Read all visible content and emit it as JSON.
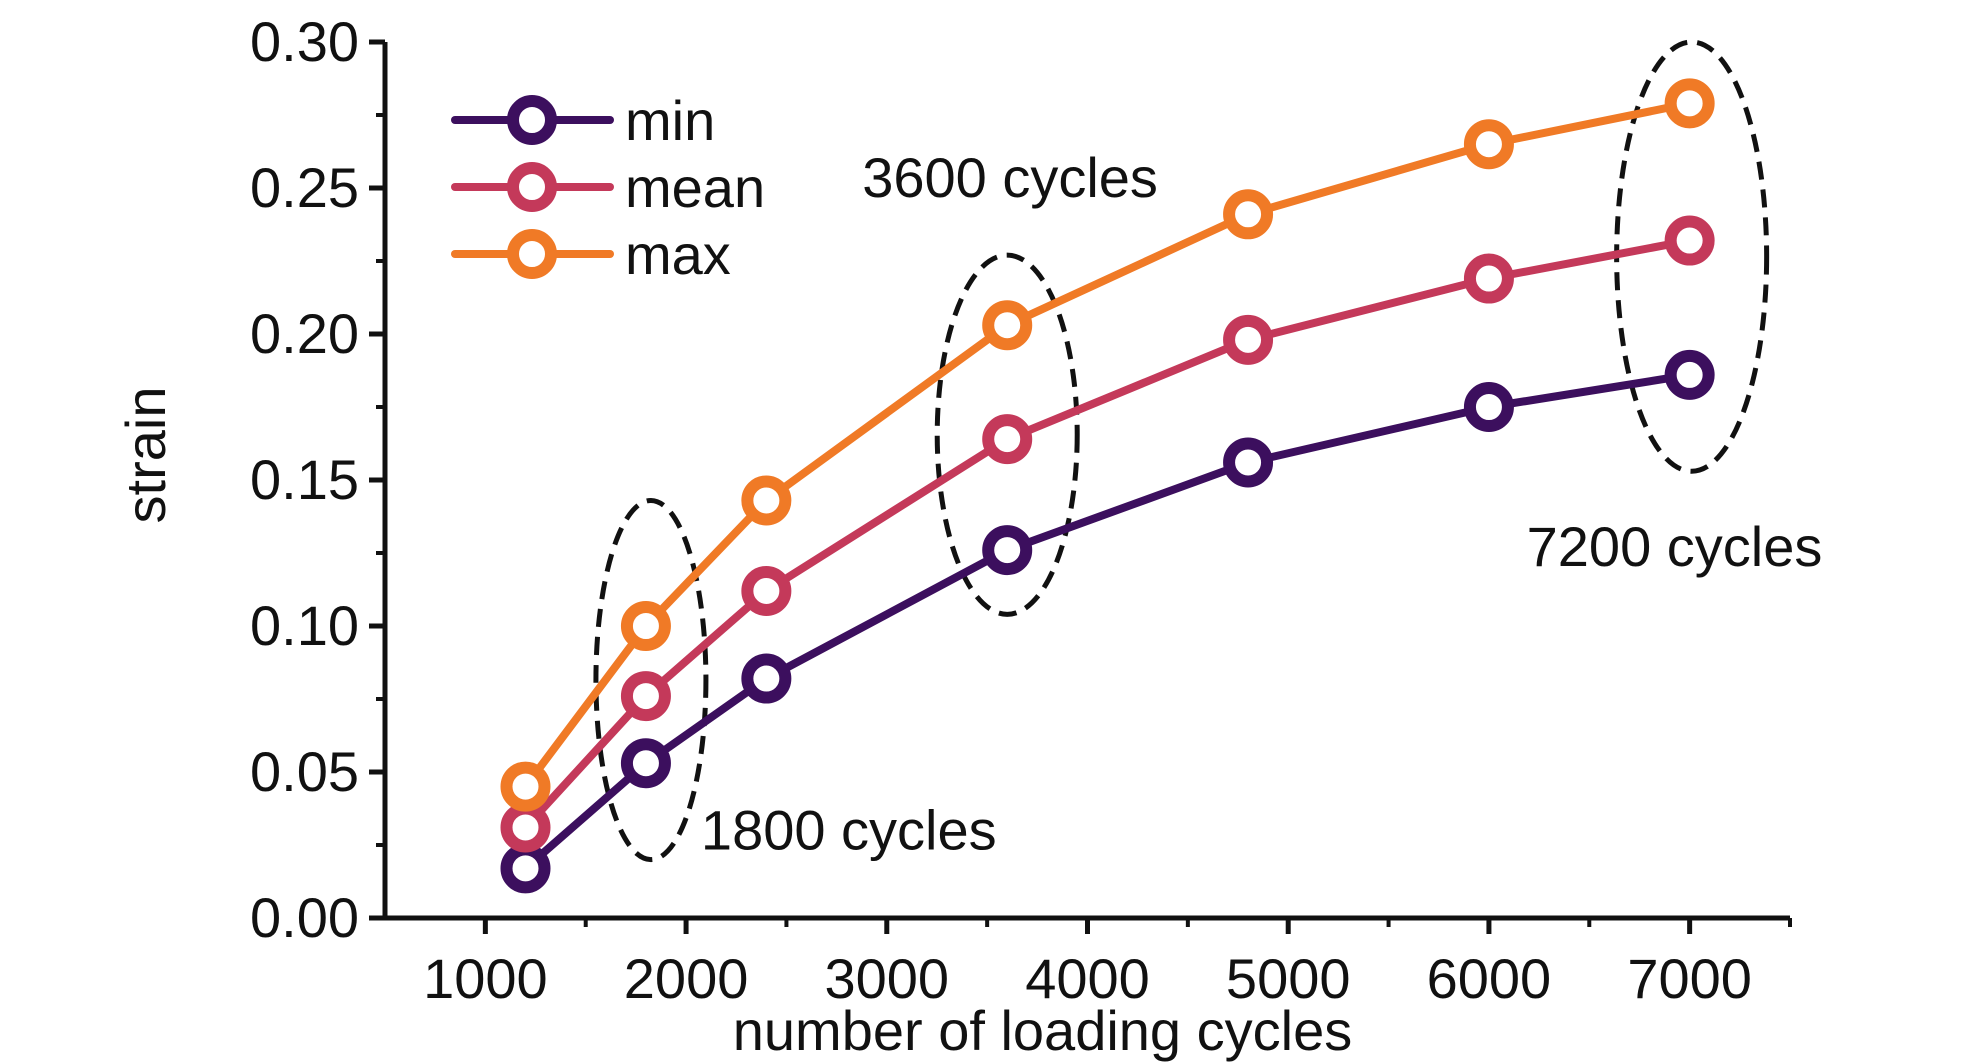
{
  "chart_data": {
    "type": "line",
    "xlabel": "number of loading cycles",
    "ylabel": "strain",
    "xlim": [
      500,
      7500
    ],
    "ylim": [
      0,
      0.3
    ],
    "x_ticks": [
      1000,
      2000,
      3000,
      4000,
      5000,
      6000,
      7000
    ],
    "x_tick_labels": [
      "1000",
      "2000",
      "3000",
      "4000",
      "5000",
      "6000",
      "7000"
    ],
    "y_ticks": [
      0,
      0.05,
      0.1,
      0.15,
      0.2,
      0.25,
      0.3
    ],
    "y_tick_labels": [
      "0.00",
      "0.05",
      "0.10",
      "0.15",
      "0.20",
      "0.25",
      "0.30"
    ],
    "grid": false,
    "legend_position": "top-left",
    "x": [
      1200,
      1800,
      2400,
      3600,
      4800,
      6000,
      7000
    ],
    "series": [
      {
        "name": "min",
        "color": "#3c0f5e",
        "values": [
          0.017,
          0.053,
          0.082,
          0.126,
          0.156,
          0.175,
          0.186
        ]
      },
      {
        "name": "mean",
        "color": "#c4395a",
        "values": [
          0.031,
          0.076,
          0.112,
          0.164,
          0.198,
          0.219,
          0.232
        ]
      },
      {
        "name": "max",
        "color": "#f07a26",
        "values": [
          0.045,
          0.1,
          0.143,
          0.203,
          0.241,
          0.265,
          0.279
        ]
      }
    ],
    "annotations": [
      {
        "text": "1800 cycles",
        "x": 1800,
        "y_low": 0.02,
        "y_high": 0.143,
        "label_anchor": "bottom-right"
      },
      {
        "text": "3600 cycles",
        "x": 3600,
        "y_low": 0.104,
        "y_high": 0.227,
        "label_anchor": "top-center"
      },
      {
        "text": "7200 cycles",
        "x": 7000,
        "y_low": 0.153,
        "y_high": 0.3,
        "label_anchor": "bottom-center"
      }
    ]
  }
}
